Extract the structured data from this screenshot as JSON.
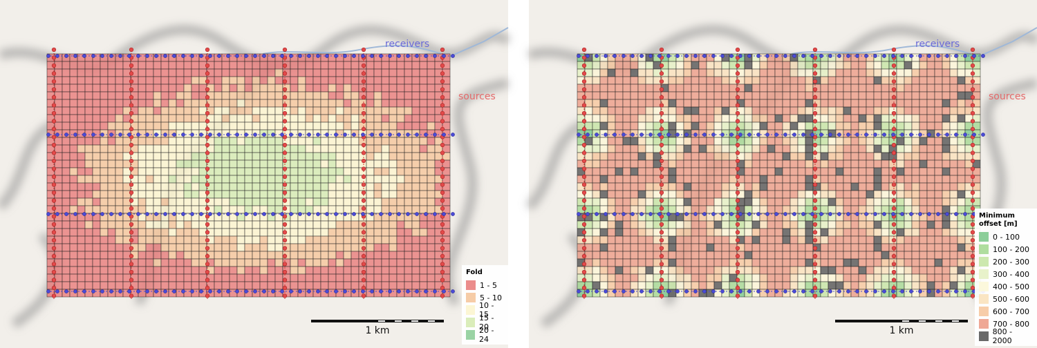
{
  "panels": [
    {
      "receivers_label": "receivers",
      "sources_label": "sources",
      "scale_label": "1 km",
      "legend": {
        "title": "Fold",
        "items": [
          {
            "label": "1 - 5",
            "color": "#e97f7e"
          },
          {
            "label": "5 - 10",
            "color": "#f5c79d"
          },
          {
            "label": "10 - 15",
            "color": "#fcf5cf"
          },
          {
            "label": "15 - 20",
            "color": "#d6ebb3"
          },
          {
            "label": "20 - 24",
            "color": "#8fce9a"
          }
        ]
      }
    },
    {
      "receivers_label": "receivers",
      "sources_label": "sources",
      "scale_label": "1 km",
      "legend": {
        "title": "Minimum offset [m]",
        "items": [
          {
            "label": "0 - 100",
            "color": "#7fc98f"
          },
          {
            "label": "100 - 200",
            "color": "#a6d995"
          },
          {
            "label": "200 - 300",
            "color": "#c7e5a6"
          },
          {
            "label": "300 - 400",
            "color": "#e5f1c4"
          },
          {
            "label": "400 - 500",
            "color": "#fcf7d8"
          },
          {
            "label": "500 - 600",
            "color": "#fae2bd"
          },
          {
            "label": "600 - 700",
            "color": "#f6c8a0"
          },
          {
            "label": "700 - 800",
            "color": "#ed9f8a"
          },
          {
            "label": "800 - 2000",
            "color": "#595959"
          }
        ]
      }
    }
  ]
}
